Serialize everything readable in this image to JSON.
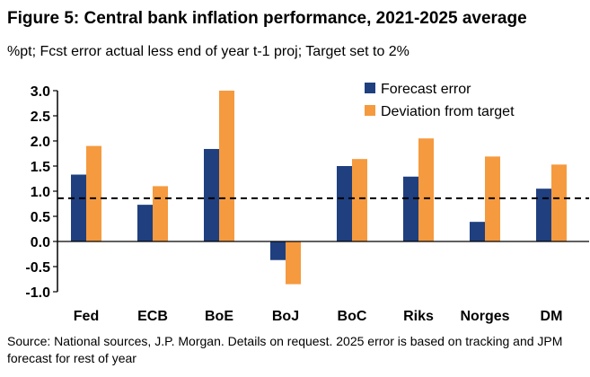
{
  "chart_data": {
    "type": "bar",
    "title": "Figure 5: Central bank inflation performance, 2021-2025 average",
    "subtitle": "%pt; Fcst error actual less end of year t-1 proj; Target set to 2%",
    "categories": [
      "Fed",
      "ECB",
      "BoE",
      "BoJ",
      "BoC",
      "Riks",
      "Norges",
      "DM"
    ],
    "series": [
      {
        "name": "Forecast error",
        "color": "#1f3f7f",
        "values": [
          1.33,
          0.73,
          1.84,
          -0.37,
          1.5,
          1.29,
          0.39,
          1.05
        ]
      },
      {
        "name": "Deviation from target",
        "color": "#f59a3f",
        "values": [
          1.9,
          1.1,
          3.0,
          -0.85,
          1.64,
          2.05,
          1.69,
          1.53
        ]
      }
    ],
    "ylim": [
      -1.0,
      3.0
    ],
    "yticks": [
      "3.0",
      "2.5",
      "2.0",
      "1.5",
      "1.0",
      "0.5",
      "0.0",
      "-0.5",
      "-1.0"
    ],
    "ytick_values": [
      3.0,
      2.5,
      2.0,
      1.5,
      1.0,
      0.5,
      0.0,
      -0.5,
      -1.0
    ],
    "reference_line": {
      "value": 0.86,
      "style": "dashed",
      "color": "#000000"
    },
    "legend_position": "top-right",
    "source": "Source: National sources, J.P. Morgan. Details on request. 2025 error is based on tracking and JPM forecast for rest of year"
  }
}
